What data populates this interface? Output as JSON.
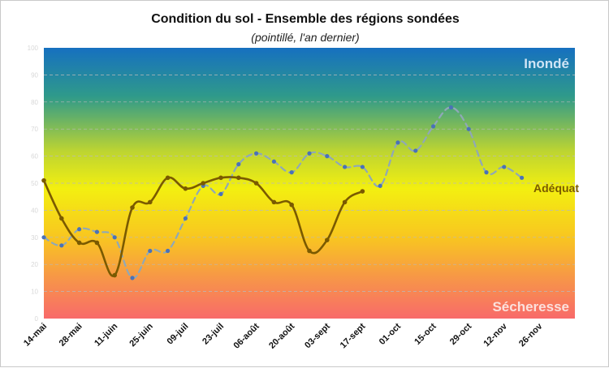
{
  "chart_data": {
    "type": "line",
    "title": "Condition du sol - Ensemble des régions sondées",
    "subtitle": "(pointillé, l'an dernier)",
    "ylim": [
      0,
      100
    ],
    "y_ticks": [
      0,
      10,
      20,
      30,
      40,
      50,
      60,
      70,
      80,
      90,
      100
    ],
    "grid": true,
    "categories": [
      "14-mai",
      "28-mai",
      "11-juin",
      "25-juin",
      "09-juil",
      "23-juil",
      "06-août",
      "20-août",
      "03-sept",
      "17-sept",
      "01-oct",
      "15-oct",
      "29-oct",
      "12-nov",
      "26-nov"
    ],
    "zone_labels": {
      "top": "Inondé",
      "middle": "Adéquat",
      "bottom": "Sécheresse"
    },
    "series": [
      {
        "style": "solid",
        "color": "#7a5a00",
        "x": [
          0,
          0.5,
          1,
          1.5,
          2,
          2.5,
          3,
          3.5,
          4,
          4.5,
          5,
          5.5,
          6,
          6.5,
          7,
          7.5,
          8,
          8.5,
          9
        ],
        "values": [
          51,
          37,
          28,
          28,
          16,
          41,
          43,
          52,
          48,
          50,
          52,
          52,
          50,
          43,
          42,
          25,
          29,
          43,
          47
        ]
      },
      {
        "style": "dashed",
        "color": "#8fa8b8",
        "x": [
          0,
          0.5,
          1,
          1.5,
          2,
          2.5,
          3,
          3.5,
          4,
          4.5,
          5,
          5.5,
          6,
          6.5,
          7,
          7.5,
          8,
          8.5,
          9,
          9.5,
          10,
          10.5,
          11,
          11.5,
          12,
          12.5,
          13,
          13.5
        ],
        "values": [
          30,
          27,
          33,
          32,
          30,
          15,
          25,
          25,
          37,
          49,
          46,
          57,
          61,
          58,
          54,
          61,
          60,
          56,
          56,
          49,
          65,
          62,
          71,
          78,
          70,
          54,
          56,
          52
        ]
      }
    ]
  }
}
